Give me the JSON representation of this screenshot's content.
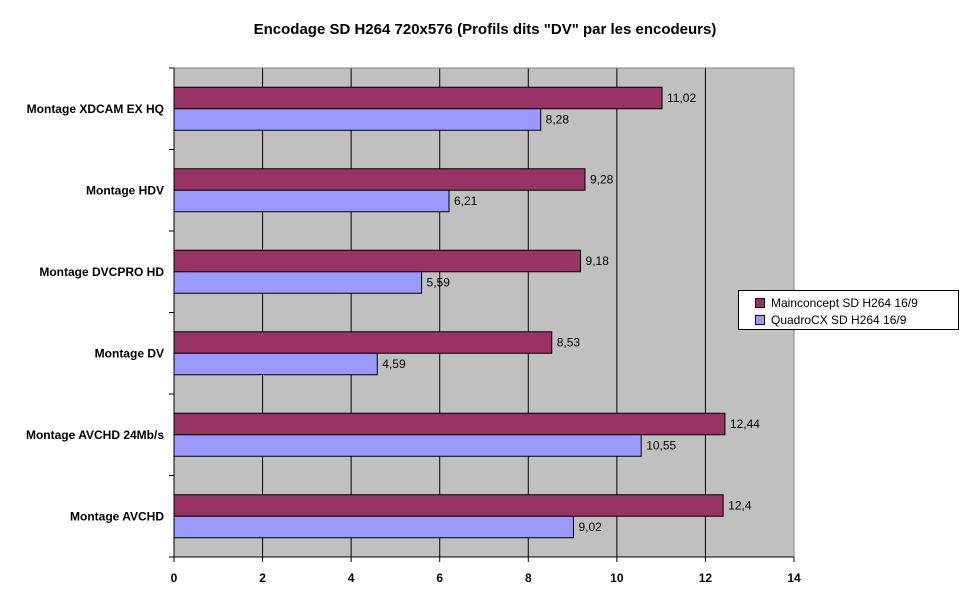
{
  "chart_data": {
    "type": "bar",
    "orientation": "horizontal",
    "title": "Encodage SD H264 720x576 (Profils dits \"DV\" par les encodeurs)",
    "categories": [
      "Montage XDCAM EX HQ",
      "Montage HDV",
      "Montage DVCPRO HD",
      "Montage DV",
      "Montage AVCHD 24Mb/s",
      "Montage AVCHD"
    ],
    "series": [
      {
        "name": "Mainconcept SD H264 16/9",
        "color": "#993366",
        "values": [
          11.02,
          9.28,
          9.18,
          8.53,
          12.44,
          12.4
        ],
        "labels": [
          "11,02",
          "9,28",
          "9,18",
          "8,53",
          "12,44",
          "12,4"
        ]
      },
      {
        "name": "QuadroCX SD H264 16/9",
        "color": "#9999ff",
        "values": [
          8.28,
          6.21,
          5.59,
          4.59,
          10.55,
          9.02
        ],
        "labels": [
          "8,28",
          "6,21",
          "5,59",
          "4,59",
          "10,55",
          "9,02"
        ]
      }
    ],
    "xlim": [
      0,
      14
    ],
    "xticks": [
      "0",
      "2",
      "4",
      "6",
      "8",
      "10",
      "12",
      "14"
    ],
    "grid": true,
    "plot_background": "#c0c0c0",
    "legend_position": "right"
  }
}
